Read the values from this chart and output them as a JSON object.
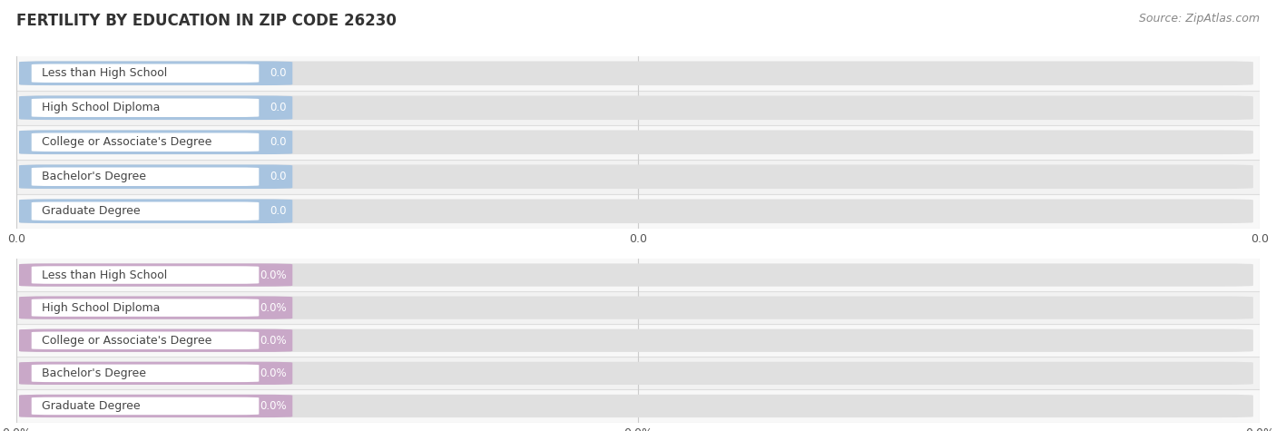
{
  "title": "FERTILITY BY EDUCATION IN ZIP CODE 26230",
  "source": "Source: ZipAtlas.com",
  "categories": [
    "Less than High School",
    "High School Diploma",
    "College or Associate's Degree",
    "Bachelor's Degree",
    "Graduate Degree"
  ],
  "values_top": [
    0.0,
    0.0,
    0.0,
    0.0,
    0.0
  ],
  "values_bottom": [
    0.0,
    0.0,
    0.0,
    0.0,
    0.0
  ],
  "bar_color_top": "#a8c4e0",
  "bar_color_bottom": "#c9a8c8",
  "bg_color": "#f0f0f0",
  "bar_bg_color": "#e0e0e0",
  "title_color": "#333333",
  "source_color": "#888888",
  "value_color_top": "#8ab0d0",
  "value_color_bottom": "#b090b8",
  "text_color": "#444444"
}
